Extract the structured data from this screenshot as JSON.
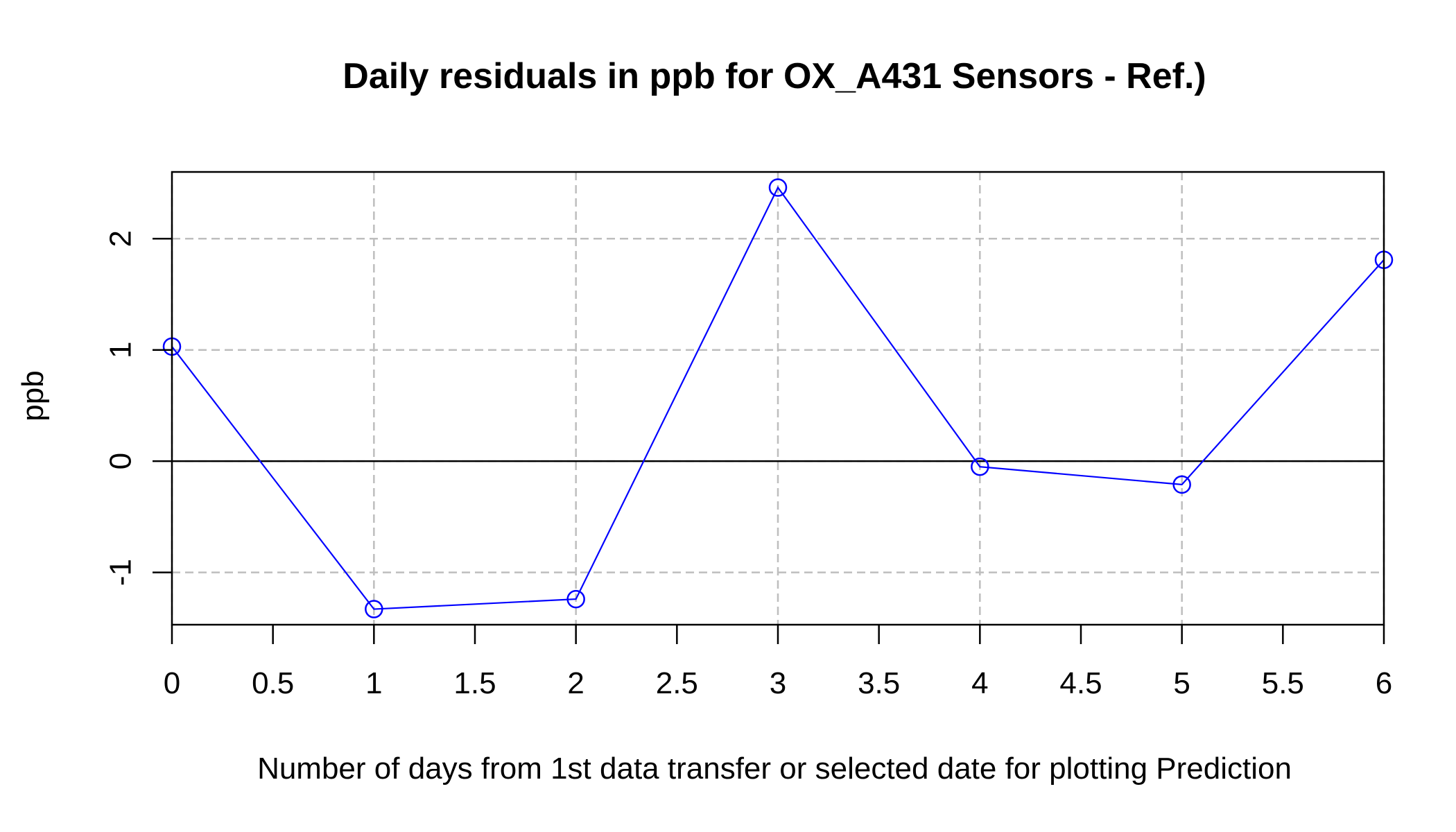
{
  "chart_data": {
    "type": "line",
    "title": "Daily residuals in ppb for OX_A431 Sensors - Ref.)",
    "xlabel": "Number of days from 1st data transfer or selected date for plotting Prediction",
    "ylabel": "ppb",
    "xlim": [
      0,
      6
    ],
    "ylim": [
      -1.47,
      2.6
    ],
    "x_ticks": [
      0,
      0.5,
      1,
      1.5,
      2,
      2.5,
      3,
      3.5,
      4,
      4.5,
      5,
      5.5,
      6
    ],
    "x_tick_labels": [
      "0",
      "0.5",
      "1",
      "1.5",
      "2",
      "2.5",
      "3",
      "3.5",
      "4",
      "4.5",
      "5",
      "5.5",
      "6"
    ],
    "y_ticks": [
      -1,
      0,
      1,
      2
    ],
    "y_tick_labels": [
      "-1",
      "0",
      "1",
      "2"
    ],
    "grid": true,
    "reference_line_y": 0,
    "series": [
      {
        "color": "#0000ff",
        "x": [
          0,
          1,
          2,
          3,
          4,
          5,
          6
        ],
        "values": [
          1.03,
          -1.33,
          -1.24,
          2.46,
          -0.05,
          -0.21,
          1.81
        ]
      }
    ]
  }
}
